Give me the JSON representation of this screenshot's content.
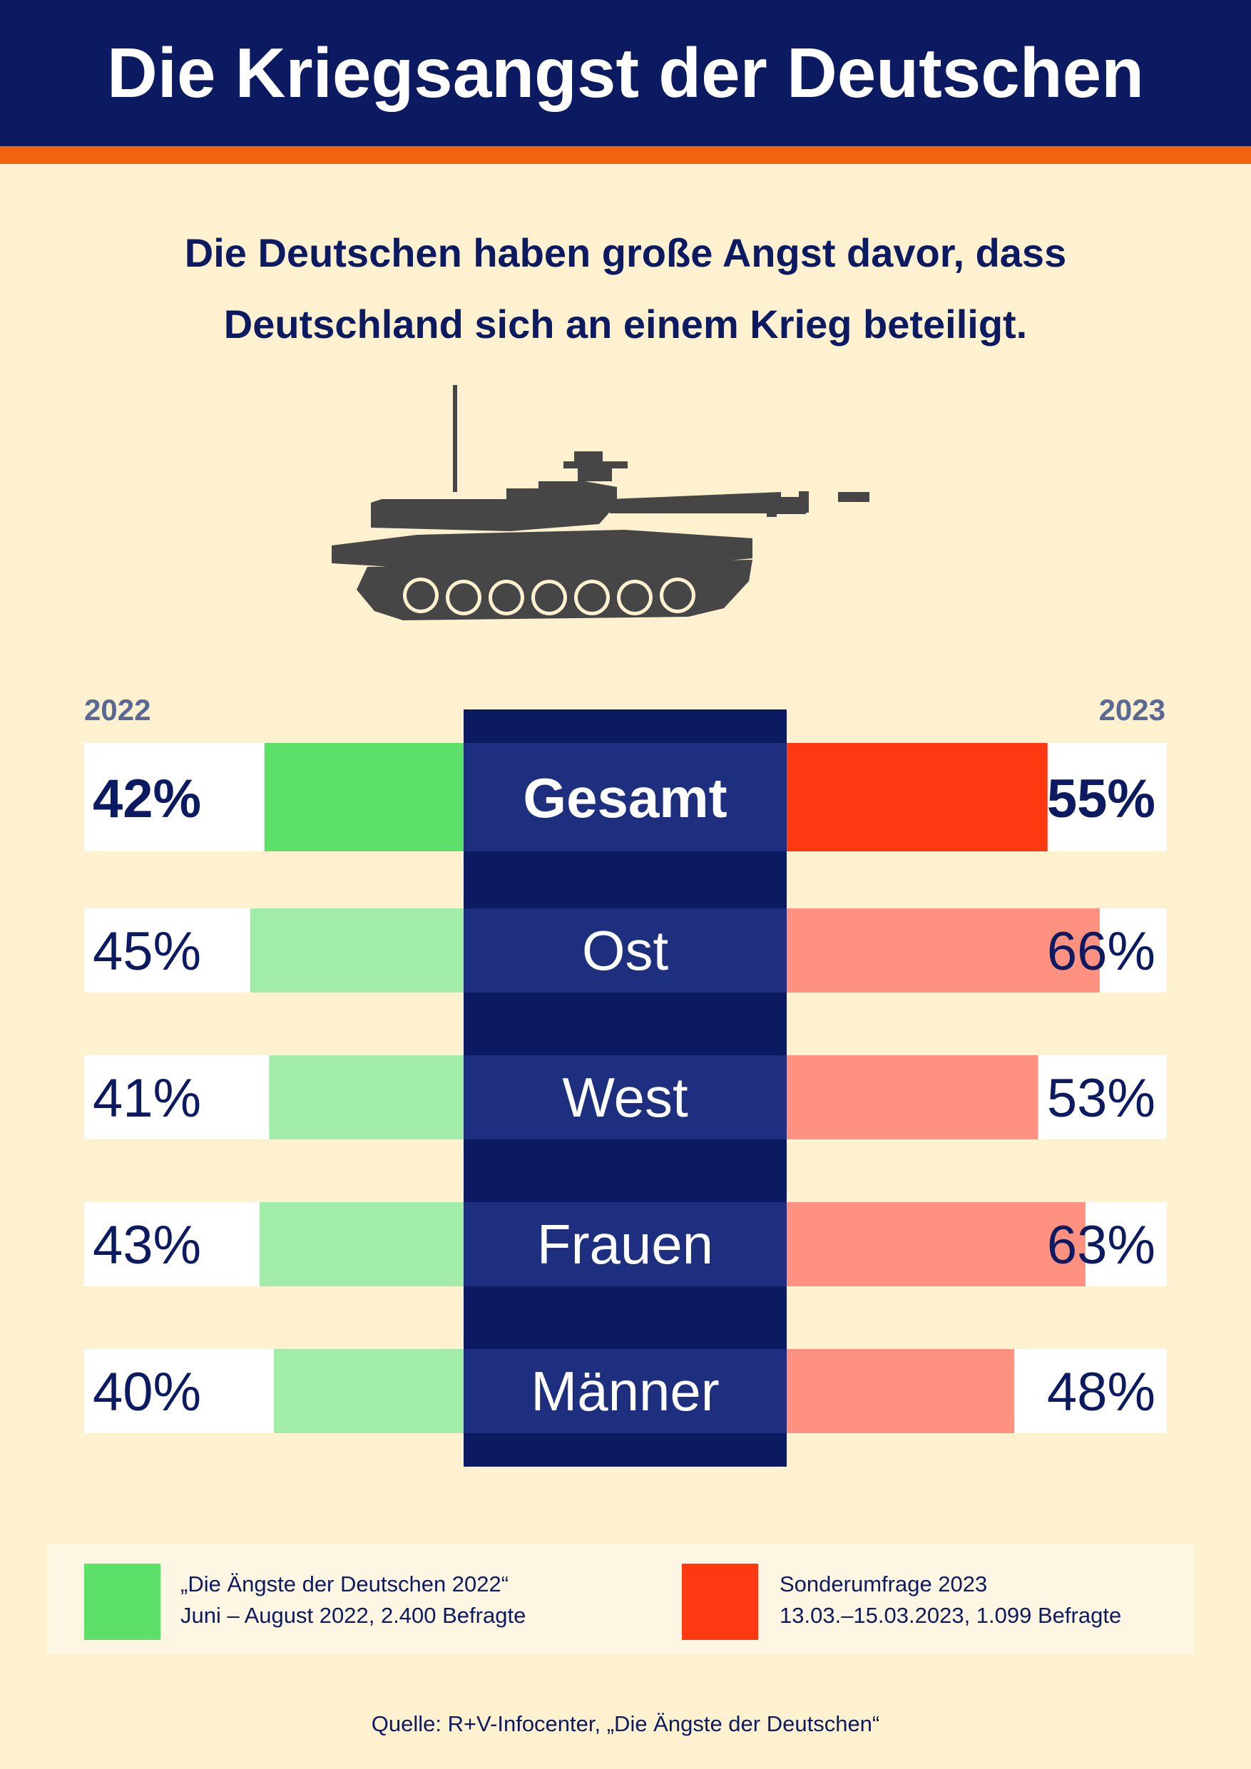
{
  "title": "Die Kriegsangst der Deutschen",
  "subtitle": {
    "line1": "Die Deutschen haben große Angst davor, dass",
    "line2": "Deutschland sich an einem Krieg beteiligt."
  },
  "illustration": {
    "icon": "tank-icon"
  },
  "colors": {
    "header_bg": "#0c1a62",
    "accent_stripe": "#f2620f",
    "background": "#fdf1cf",
    "green_strong": "#5de06a",
    "green_light": "#a2ecaa",
    "red_strong": "#ff3a12",
    "red_light": "#ff9180",
    "center_column": "#0c1a62",
    "center_band": "#1e2f80"
  },
  "chart_data": {
    "type": "bar",
    "layout": "butterfly",
    "x_scale_max_percent": 100,
    "left_label": "2022",
    "right_label": "2023",
    "categories": [
      "Gesamt",
      "Ost",
      "West",
      "Frauen",
      "Männer"
    ],
    "series": [
      {
        "name": "2022",
        "values": [
          42,
          45,
          41,
          43,
          40
        ],
        "labels": [
          "42%",
          "45%",
          "41%",
          "43%",
          "40%"
        ]
      },
      {
        "name": "2023",
        "values": [
          55,
          66,
          53,
          63,
          48
        ],
        "labels": [
          "55%",
          "66%",
          "53%",
          "63%",
          "48%"
        ]
      }
    ],
    "highlighted_category": "Gesamt"
  },
  "legend": [
    {
      "color": "#5de06a",
      "line1": "„Die Ängste der Deutschen 2022“",
      "line2": "Juni – August 2022, 2.400 Befragte"
    },
    {
      "color": "#ff3a12",
      "line1": "Sonderumfrage 2023",
      "line2": "13.03.–15.03.2023, 1.099 Befragte"
    }
  ],
  "source": "Quelle: R+V-Infocenter, „Die Ängste der Deutschen“"
}
